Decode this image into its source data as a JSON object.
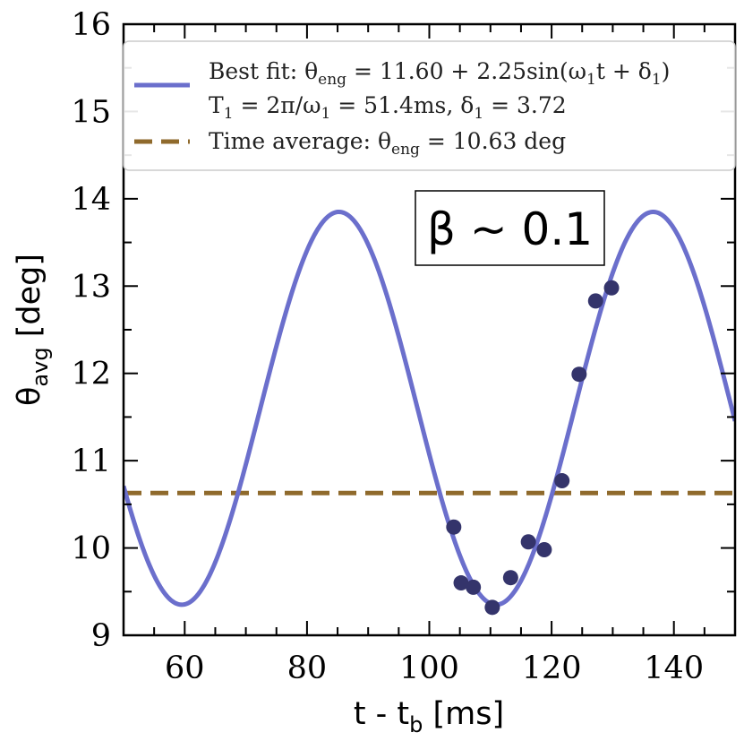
{
  "chart_data": {
    "type": "scatter",
    "title": "",
    "xlabel": "t - t",
    "xlabel_sub": "b",
    "xlabel_unit": " [ms]",
    "ylabel": "θ",
    "ylabel_sub": "avg",
    "ylabel_unit": " [deg]",
    "xlim": [
      50,
      150
    ],
    "ylim": [
      9,
      16
    ],
    "xticks": [
      60,
      80,
      100,
      120,
      140
    ],
    "yticks": [
      9,
      10,
      11,
      12,
      13,
      14,
      15,
      16
    ],
    "grid": false,
    "legend_position": "top-right",
    "annotation": "β ~ 0.1",
    "colors": {
      "fit": "#6b6fcc",
      "average": "#8f6a2c",
      "points": "#34346b"
    },
    "fit": {
      "offset": 11.6,
      "amplitude": 2.25,
      "period_ms": 51.4,
      "phase": 3.72
    },
    "average": {
      "value": 10.63
    },
    "points": [
      {
        "x": 104.0,
        "y": 10.24
      },
      {
        "x": 105.2,
        "y": 9.6
      },
      {
        "x": 107.2,
        "y": 9.55
      },
      {
        "x": 110.3,
        "y": 9.32
      },
      {
        "x": 113.3,
        "y": 9.66
      },
      {
        "x": 116.2,
        "y": 10.07
      },
      {
        "x": 118.8,
        "y": 9.98
      },
      {
        "x": 121.7,
        "y": 10.77
      },
      {
        "x": 124.5,
        "y": 11.99
      },
      {
        "x": 127.2,
        "y": 12.83
      },
      {
        "x": 129.8,
        "y": 12.98
      }
    ],
    "legend": {
      "fit_line1": {
        "prefix": "Best fit: ",
        "theta": "θ",
        "sub": "eng",
        "eq": " = 11.60 + 2.25sin(ω",
        "sub1": "1",
        "mid": "t + δ",
        "sub2": "1",
        "end": ")"
      },
      "fit_line2": {
        "a": "T",
        "a_sub": "1",
        "b": " = 2π/ω",
        "b_sub": "1",
        "c": " = 51.4ms, δ",
        "c_sub": "1",
        "d": " = 3.72"
      },
      "average_line": {
        "prefix": "Time average: ",
        "theta": "θ",
        "sub": "eng",
        "eq": " = 10.63 deg"
      }
    }
  }
}
